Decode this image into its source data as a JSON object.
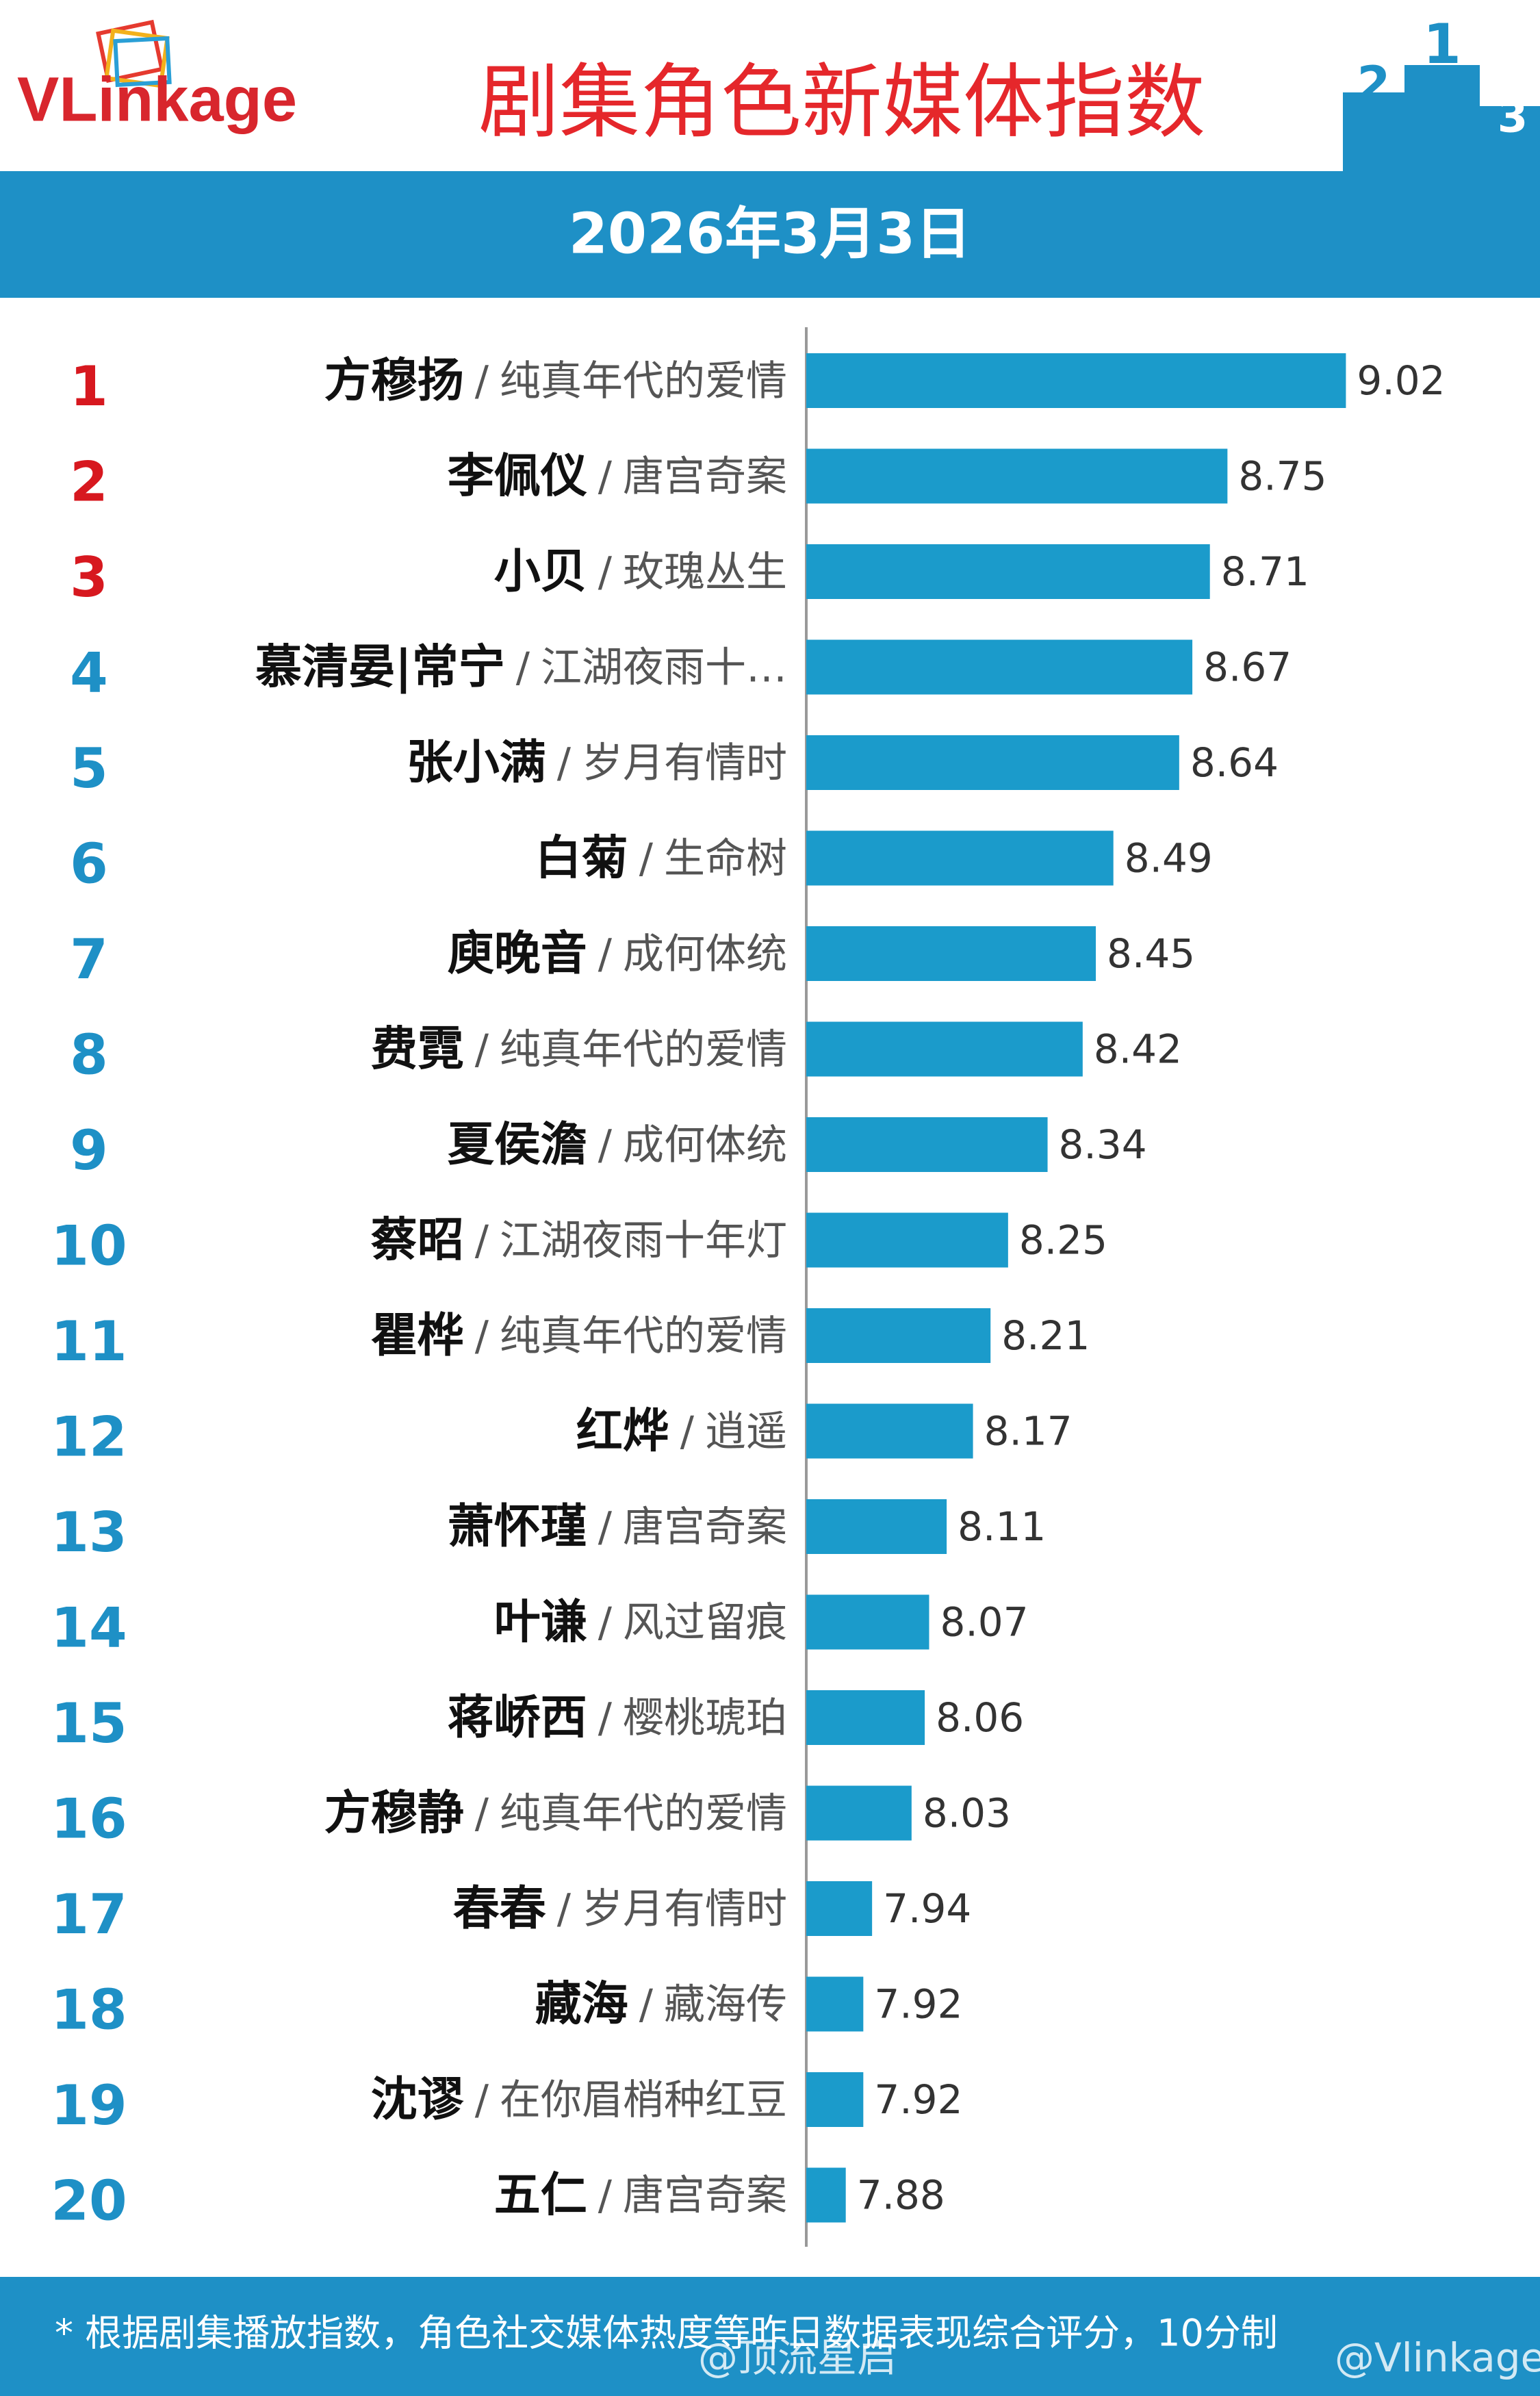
{
  "header": {
    "brand": "VLinkage",
    "title": "剧集角色新媒体指数",
    "date": "2026年3月3日",
    "podium": [
      "2",
      "1",
      "3"
    ]
  },
  "chart_data": {
    "type": "bar",
    "orientation": "horizontal",
    "ranks": [
      "1",
      "2",
      "3",
      "4",
      "5",
      "6",
      "7",
      "8",
      "9",
      "10",
      "11",
      "12",
      "13",
      "14",
      "15",
      "16",
      "17",
      "18",
      "19",
      "20"
    ],
    "rank_colors": [
      "#d7181f",
      "#d7181f",
      "#d7181f",
      "#1e90c6",
      "#1e90c6",
      "#1e90c6",
      "#1e90c6",
      "#1e90c6",
      "#1e90c6",
      "#1e90c6",
      "#1e90c6",
      "#1e90c6",
      "#1e90c6",
      "#1e90c6",
      "#1e90c6",
      "#1e90c6",
      "#1e90c6",
      "#1e90c6",
      "#1e90c6",
      "#1e90c6"
    ],
    "categories": [
      "方穆扬",
      "李佩仪",
      "小贝",
      "慕清晏|常宁",
      "张小满",
      "白菊",
      "庾晚音",
      "费霓",
      "夏侯澹",
      "蔡昭",
      "瞿桦",
      "红烨",
      "萧怀瑾",
      "叶谦",
      "蒋峤西",
      "方穆静",
      "春春",
      "藏海",
      "沈谬",
      "五仁"
    ],
    "separator": "/",
    "shows": [
      "纯真年代的爱情",
      "唐宫奇案",
      "玫瑰丛生",
      "江湖夜雨十…",
      "岁月有情时",
      "生命树",
      "成何体统",
      "纯真年代的爱情",
      "成何体统",
      "江湖夜雨十年灯",
      "纯真年代的爱情",
      "逍遥",
      "唐宫奇案",
      "风过留痕",
      "樱桃琥珀",
      "纯真年代的爱情",
      "岁月有情时",
      "藏海传",
      "在你眉梢种红豆",
      "唐宫奇案"
    ],
    "values": [
      9.02,
      8.75,
      8.71,
      8.67,
      8.64,
      8.49,
      8.45,
      8.42,
      8.34,
      8.25,
      8.21,
      8.17,
      8.11,
      8.07,
      8.06,
      8.03,
      7.94,
      7.92,
      7.92,
      7.88
    ],
    "color": "#1b9bcb",
    "xlim": [
      7.79,
      9.4
    ]
  },
  "footer": {
    "note": "* 根据剧集播放指数，角色社交媒体热度等昨日数据表现综合评分，10分制",
    "watermarks": [
      "@顶流星启",
      "@Vlinkage"
    ]
  }
}
